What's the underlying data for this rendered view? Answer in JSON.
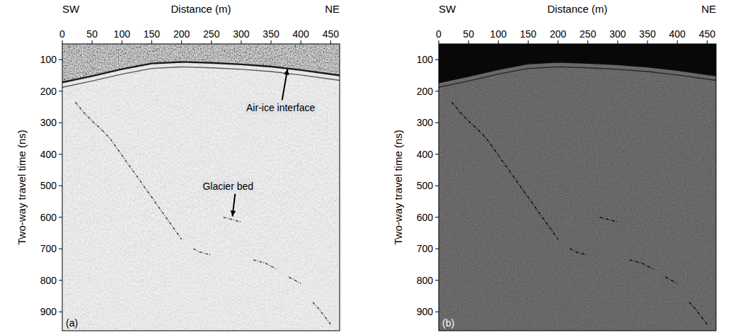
{
  "chart_data": [
    {
      "type": "line",
      "panel_label": "(a)",
      "x_label": "Distance (m)",
      "y_label": "Two-way travel time (ns)",
      "annotations": [
        "SW",
        "NE"
      ],
      "xlim": [
        0,
        465
      ],
      "xticks": [
        0,
        50,
        100,
        150,
        200,
        250,
        300,
        350,
        400,
        450
      ],
      "ylim": [
        50,
        960
      ],
      "yticks": [
        100,
        200,
        300,
        400,
        500,
        600,
        700,
        800,
        900
      ],
      "series": [
        {
          "name": "Air-ice interface",
          "color": "#1a1a1a",
          "line_style": "solid",
          "arrow_to": [
            378,
            125
          ],
          "x": [
            0,
            50,
            100,
            150,
            200,
            250,
            300,
            350,
            400,
            465
          ],
          "values": [
            172,
            152,
            130,
            112,
            107,
            110,
            115,
            122,
            133,
            150
          ]
        },
        {
          "name": "Glacier bed",
          "color": "#333333",
          "line_style": "dashed",
          "arrow_to": [
            285,
            602
          ],
          "x": [
            22,
            35,
            50,
            65,
            80,
            95,
            110,
            125,
            140,
            155,
            170,
            185,
            200,
            210,
            220,
            230,
            240,
            250,
            260,
            270,
            280,
            290,
            300,
            310,
            320,
            330,
            340,
            350,
            360,
            370,
            380,
            390,
            400,
            410,
            420,
            430,
            440,
            450
          ],
          "values": [
            235,
            265,
            295,
            320,
            350,
            390,
            430,
            470,
            510,
            550,
            590,
            630,
            670,
            null,
            700,
            710,
            715,
            720,
            null,
            600,
            605,
            610,
            615,
            null,
            735,
            740,
            745,
            755,
            765,
            null,
            790,
            800,
            810,
            null,
            870,
            890,
            915,
            940
          ]
        }
      ]
    },
    {
      "type": "line",
      "panel_label": "(b)",
      "x_label": "Distance (m)",
      "y_label": "Two-way travel time (ns)",
      "annotations": [
        "SW",
        "NE"
      ],
      "xlim": [
        0,
        465
      ],
      "xticks": [
        0,
        50,
        100,
        150,
        200,
        250,
        300,
        350,
        400,
        450
      ],
      "ylim": [
        50,
        960
      ],
      "yticks": [
        100,
        200,
        300,
        400,
        500,
        600,
        700,
        800,
        900
      ],
      "series": [
        {
          "color": "#0a0a0a",
          "line_style": "solid",
          "x": [
            0,
            50,
            100,
            150,
            200,
            250,
            300,
            350,
            400,
            465
          ],
          "values": [
            172,
            152,
            130,
            112,
            107,
            110,
            115,
            122,
            133,
            150
          ]
        },
        {
          "color": "#000000",
          "line_style": "dashed",
          "x": [
            22,
            35,
            50,
            65,
            80,
            95,
            110,
            125,
            140,
            155,
            170,
            185,
            200,
            210,
            220,
            230,
            240,
            250,
            260,
            270,
            280,
            290,
            300,
            310,
            320,
            330,
            340,
            350,
            360,
            370,
            380,
            390,
            400,
            410,
            420,
            430,
            440,
            450
          ],
          "values": [
            235,
            265,
            295,
            320,
            350,
            390,
            430,
            470,
            510,
            550,
            590,
            630,
            670,
            null,
            700,
            710,
            715,
            720,
            null,
            600,
            605,
            610,
            615,
            null,
            735,
            740,
            745,
            755,
            765,
            null,
            790,
            800,
            810,
            null,
            870,
            890,
            915,
            940
          ]
        }
      ]
    }
  ]
}
